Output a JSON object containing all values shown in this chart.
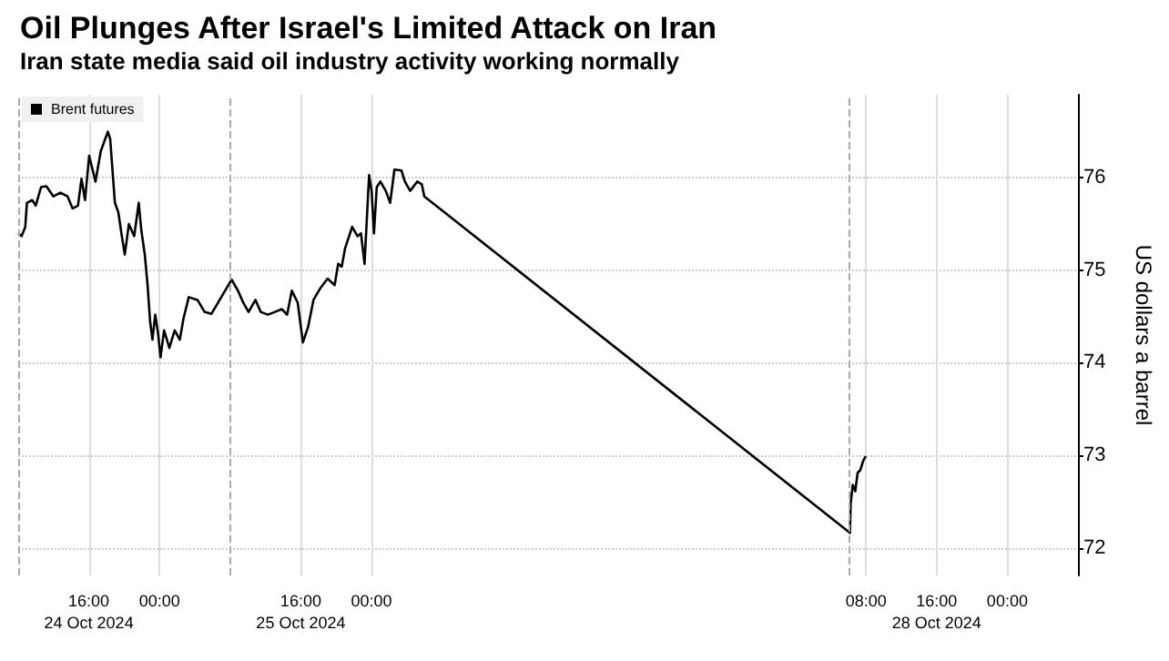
{
  "chart_data": {
    "type": "line",
    "title": "Oil Plunges After Israel's Limited Attack on Iran",
    "subtitle": "Iran state media said oil industry activity working normally",
    "ylabel": "US dollars a barrel",
    "x": [
      "2024-10-24T08:00",
      "2024-10-24T08:23",
      "2024-10-24T08:48",
      "2024-10-24T08:59",
      "2024-10-24T09:35",
      "2024-10-24T09:59",
      "2024-10-24T10:35",
      "2024-10-24T11:11",
      "2024-10-24T11:59",
      "2024-10-24T12:47",
      "2024-10-24T13:35",
      "2024-10-24T14:10",
      "2024-10-24T14:46",
      "2024-10-24T15:10",
      "2024-10-24T15:34",
      "2024-10-24T16:02",
      "2024-10-24T16:45",
      "2024-10-24T17:21",
      "2024-10-24T18:09",
      "2024-10-24T18:25",
      "2024-10-24T18:57",
      "2024-10-24T19:20",
      "2024-10-24T19:44",
      "2024-10-24T20:04",
      "2024-10-24T20:32",
      "2024-10-24T21:08",
      "2024-10-24T21:39",
      "2024-10-24T21:56",
      "2024-10-24T22:20",
      "2024-10-24T22:39",
      "2024-10-24T22:56",
      "2024-10-24T23:12",
      "2024-10-24T23:31",
      "2024-10-24T23:50",
      "2024-10-25T00:07",
      "2024-10-25T00:31",
      "2024-10-25T01:07",
      "2024-10-25T01:43",
      "2024-10-25T02:18",
      "2024-10-25T02:43",
      "2024-10-25T03:19",
      "2024-10-25T04:18",
      "2024-10-25T05:06",
      "2024-10-25T05:53",
      "2024-10-25T08:10",
      "2024-10-25T08:53",
      "2024-10-25T09:29",
      "2024-10-25T10:05",
      "2024-10-25T10:52",
      "2024-10-25T11:28",
      "2024-10-25T12:16",
      "2024-10-25T13:04",
      "2024-10-25T13:52",
      "2024-10-25T14:27",
      "2024-10-25T14:59",
      "2024-10-25T15:39",
      "2024-10-25T16:14",
      "2024-10-25T16:50",
      "2024-10-25T17:26",
      "2024-10-25T18:14",
      "2024-10-25T19:02",
      "2024-10-25T19:50",
      "2024-10-25T20:14",
      "2024-10-25T20:38",
      "2024-10-25T21:01",
      "2024-10-25T21:49",
      "2024-10-25T22:25",
      "2024-10-25T22:49",
      "2024-10-25T23:13",
      "2024-10-25T23:44",
      "2024-10-26T00:01",
      "2024-10-26T00:17",
      "2024-10-26T00:36",
      "2024-10-26T01:01",
      "2024-10-26T01:37",
      "2024-10-26T02:07",
      "2024-10-26T02:36",
      "2024-10-26T03:24",
      "2024-10-26T03:47",
      "2024-10-26T04:23",
      "2024-10-26T05:11",
      "2024-10-26T05:42",
      "2024-10-26T05:59",
      "2024-10-28T06:11",
      "2024-10-28T06:16",
      "2024-10-28T06:30",
      "2024-10-28T06:47",
      "2024-10-28T07:03",
      "2024-10-28T07:22",
      "2024-10-28T07:41",
      "2024-10-28T07:58"
    ],
    "series": [
      {
        "name": "Brent futures",
        "color": "#000000",
        "values": [
          75.4,
          75.37,
          75.47,
          75.73,
          75.76,
          75.7,
          75.9,
          75.91,
          75.8,
          75.84,
          75.8,
          75.67,
          75.7,
          75.99,
          75.76,
          76.24,
          75.96,
          76.29,
          76.5,
          76.42,
          75.73,
          75.63,
          75.37,
          75.17,
          75.5,
          75.37,
          75.73,
          75.44,
          75.17,
          74.84,
          74.45,
          74.25,
          74.52,
          74.32,
          74.06,
          74.35,
          74.16,
          74.35,
          74.25,
          74.48,
          74.71,
          74.68,
          74.55,
          74.53,
          74.9,
          74.78,
          74.65,
          74.55,
          74.68,
          74.55,
          74.52,
          74.55,
          74.58,
          74.52,
          74.78,
          74.65,
          74.22,
          74.39,
          74.68,
          74.81,
          74.91,
          74.84,
          75.07,
          75.04,
          75.24,
          75.47,
          75.37,
          75.4,
          75.07,
          76.03,
          75.86,
          75.4,
          75.9,
          75.96,
          75.86,
          75.73,
          76.09,
          76.08,
          75.96,
          75.86,
          75.96,
          75.93,
          75.8,
          72.16,
          72.48,
          72.68,
          72.61,
          72.81,
          72.84,
          72.94,
          72.99
        ]
      }
    ],
    "xlim": [
      "2024-10-24T08:00",
      "2024-10-29T08:00"
    ],
    "xticks": [
      {
        "value": "2024-10-24T16:00",
        "label": "16:00\n24 Oct 2024"
      },
      {
        "value": "2024-10-25T00:00",
        "label": "00:00"
      },
      {
        "value": "2024-10-25T16:00",
        "label": "16:00\n25 Oct 2024"
      },
      {
        "value": "2024-10-26T00:00",
        "label": "00:00"
      },
      {
        "value": "2024-10-28T08:00",
        "label": "08:00"
      },
      {
        "value": "2024-10-28T16:00",
        "label": "16:00\n28 Oct 2024"
      },
      {
        "value": "2024-10-29T00:00",
        "label": "00:00"
      }
    ],
    "ylim": [
      71.7,
      76.9
    ],
    "yticks": [
      72,
      73,
      74,
      75,
      76
    ],
    "ref_lines": [
      {
        "axis": "x",
        "value": "2024-10-24T08:00",
        "line_style": "dashed",
        "color": "#aaaaaa"
      },
      {
        "axis": "x",
        "value": "2024-10-25T08:00",
        "line_style": "dashed",
        "color": "#aaaaaa"
      },
      {
        "axis": "x",
        "value": "2024-10-28T06:00",
        "line_style": "dashed",
        "color": "#aaaaaa"
      }
    ],
    "grid": true,
    "legend": "top left"
  }
}
